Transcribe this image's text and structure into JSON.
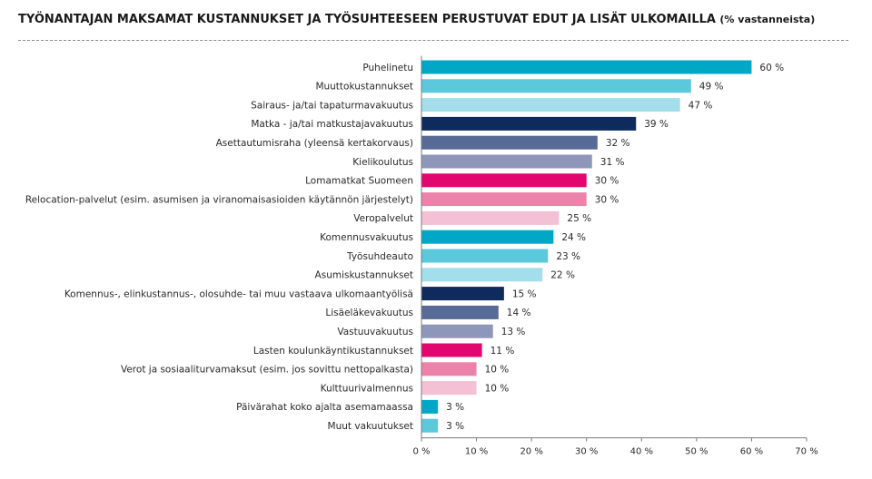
{
  "header": {
    "title": "TYÖNANTAJAN MAKSAMAT KUSTANNUKSET JA TYÖSUHTEESEEN PERUSTUVAT EDUT JA LISÄT ULKOMAILLA",
    "subtitle": "(% vastanneista)"
  },
  "chart_data": {
    "type": "bar",
    "orientation": "horizontal",
    "title": "TYÖNANTAJAN MAKSAMAT KUSTANNUKSET JA TYÖSUHTEESEEN PERUSTUVAT EDUT JA LISÄT ULKOMAILLA",
    "subtitle": "(% vastanneista)",
    "xlabel": "",
    "ylabel": "",
    "xlim": [
      0,
      70
    ],
    "grid": false,
    "legend": "none",
    "value_suffix": " %",
    "x_ticks": [
      0,
      10,
      20,
      30,
      40,
      50,
      60,
      70
    ],
    "x_tick_labels": [
      "0 %",
      "10 %",
      "20 %",
      "30 %",
      "40 %",
      "50 %",
      "60 %",
      "70 %"
    ],
    "categories": [
      "Puhelinetu",
      "Muuttokustannukset",
      "Sairaus- ja/tai tapaturmavakuutus",
      "Matka - ja/tai matkustajavakuutus",
      "Asettautumisraha (yleensä kertakorvaus)",
      "Kielikoulutus",
      "Lomamatkat Suomeen",
      "Relocation-palvelut (esim. asumisen ja viranomaisasioiden käytännön järjestelyt)",
      "Veropalvelut",
      "Komennusvakuutus",
      "Työsuhdeauto",
      "Asumiskustannukset",
      "Komennus-, elinkustannus-, olosuhde- tai muu vastaava ulkomaantyölisä",
      "Lisäeläkevakuutus",
      "Vastuuvakuutus",
      "Lasten koulunkäyntikustannukset",
      "Verot ja sosiaaliturvamaksut (esim. jos sovittu nettopalkasta)",
      "Kulttuurivalmennus",
      "Päivärahat koko ajalta asemamaassa",
      "Muut vakuutukset"
    ],
    "values": [
      60,
      49,
      47,
      39,
      32,
      31,
      30,
      30,
      25,
      24,
      23,
      22,
      15,
      14,
      13,
      11,
      10,
      10,
      3,
      3
    ],
    "value_labels": [
      "60 %",
      "49 %",
      "47 %",
      "39 %",
      "32 %",
      "31 %",
      "30 %",
      "30 %",
      "25 %",
      "24 %",
      "23 %",
      "22 %",
      "15 %",
      "14 %",
      "13 %",
      "11 %",
      "10 %",
      "10 %",
      "3 %",
      "3 %"
    ],
    "colors": [
      "#00a8c6",
      "#5bc8dc",
      "#a3dfea",
      "#0f2a5c",
      "#586a96",
      "#8e97ba",
      "#e2066f",
      "#ec82a9",
      "#f4c0d3",
      "#00a8c6",
      "#5bc8dc",
      "#a3dfea",
      "#0f2a5c",
      "#586a96",
      "#8e97ba",
      "#e2066f",
      "#ec82a9",
      "#f4c0d3",
      "#00a8c6",
      "#5bc8dc"
    ],
    "axis_color": "#7a7a7a"
  }
}
